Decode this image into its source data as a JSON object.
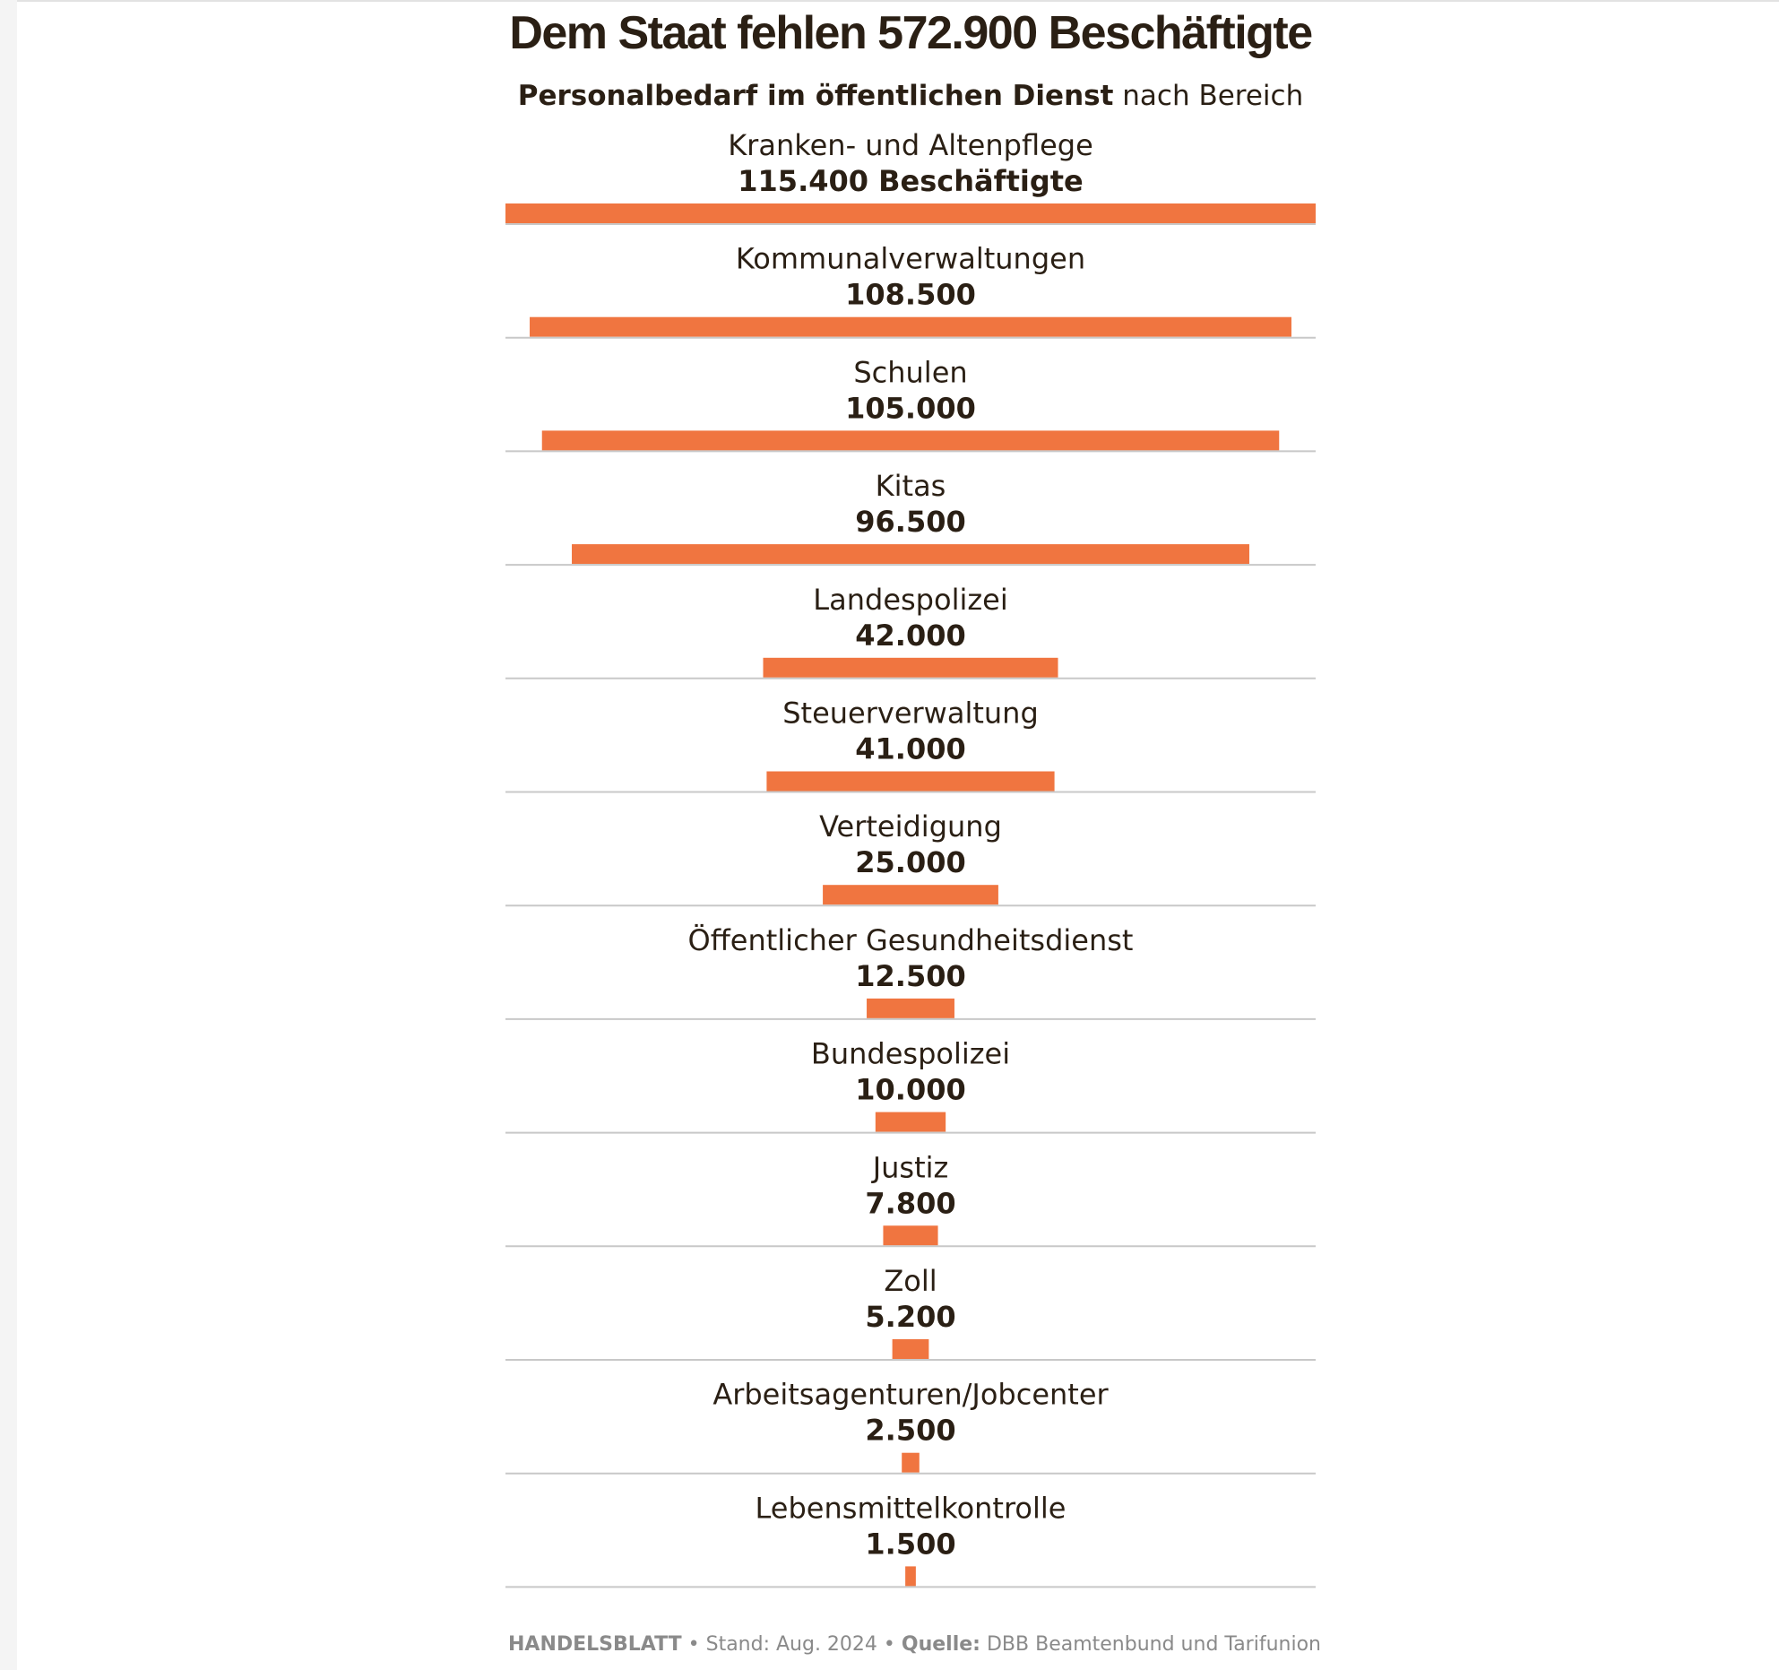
{
  "header": {
    "title": "Dem Staat fehlen 572.900 Beschäftigte",
    "subtitle_bold": "Personalbedarf im öffentlichen Dienst",
    "subtitle_rest": " nach Bereich"
  },
  "chart_data": {
    "type": "bar",
    "orientation": "horizontal-centered",
    "bar_color": "#f07540",
    "categories": [
      "Kranken- und Altenpflege",
      "Kommunalverwaltungen",
      "Schulen",
      "Kitas",
      "Landespolizei",
      "Steuerverwaltung",
      "Verteidigung",
      "Öffentlicher Gesundheitsdienst",
      "Bundespolizei",
      "Justiz",
      "Zoll",
      "Arbeitsagenturen/Jobcenter",
      "Lebensmittelkontrolle"
    ],
    "values": [
      115400,
      108500,
      105000,
      96500,
      42000,
      41000,
      25000,
      12500,
      10000,
      7800,
      5200,
      2500,
      1500
    ],
    "value_labels": [
      "115.400 Beschäftigte",
      "108.500",
      "105.000",
      "96.500",
      "42.000",
      "41.000",
      "25.000",
      "12.500",
      "10.000",
      "7.800",
      "5.200",
      "2.500",
      "1.500"
    ]
  },
  "footer": {
    "brand": "HANDELSBLATT",
    "sep1": " • Stand: Aug. 2024 • ",
    "source_label": "Quelle:",
    "source": " DBB Beamtenbund und Tarifunion"
  }
}
